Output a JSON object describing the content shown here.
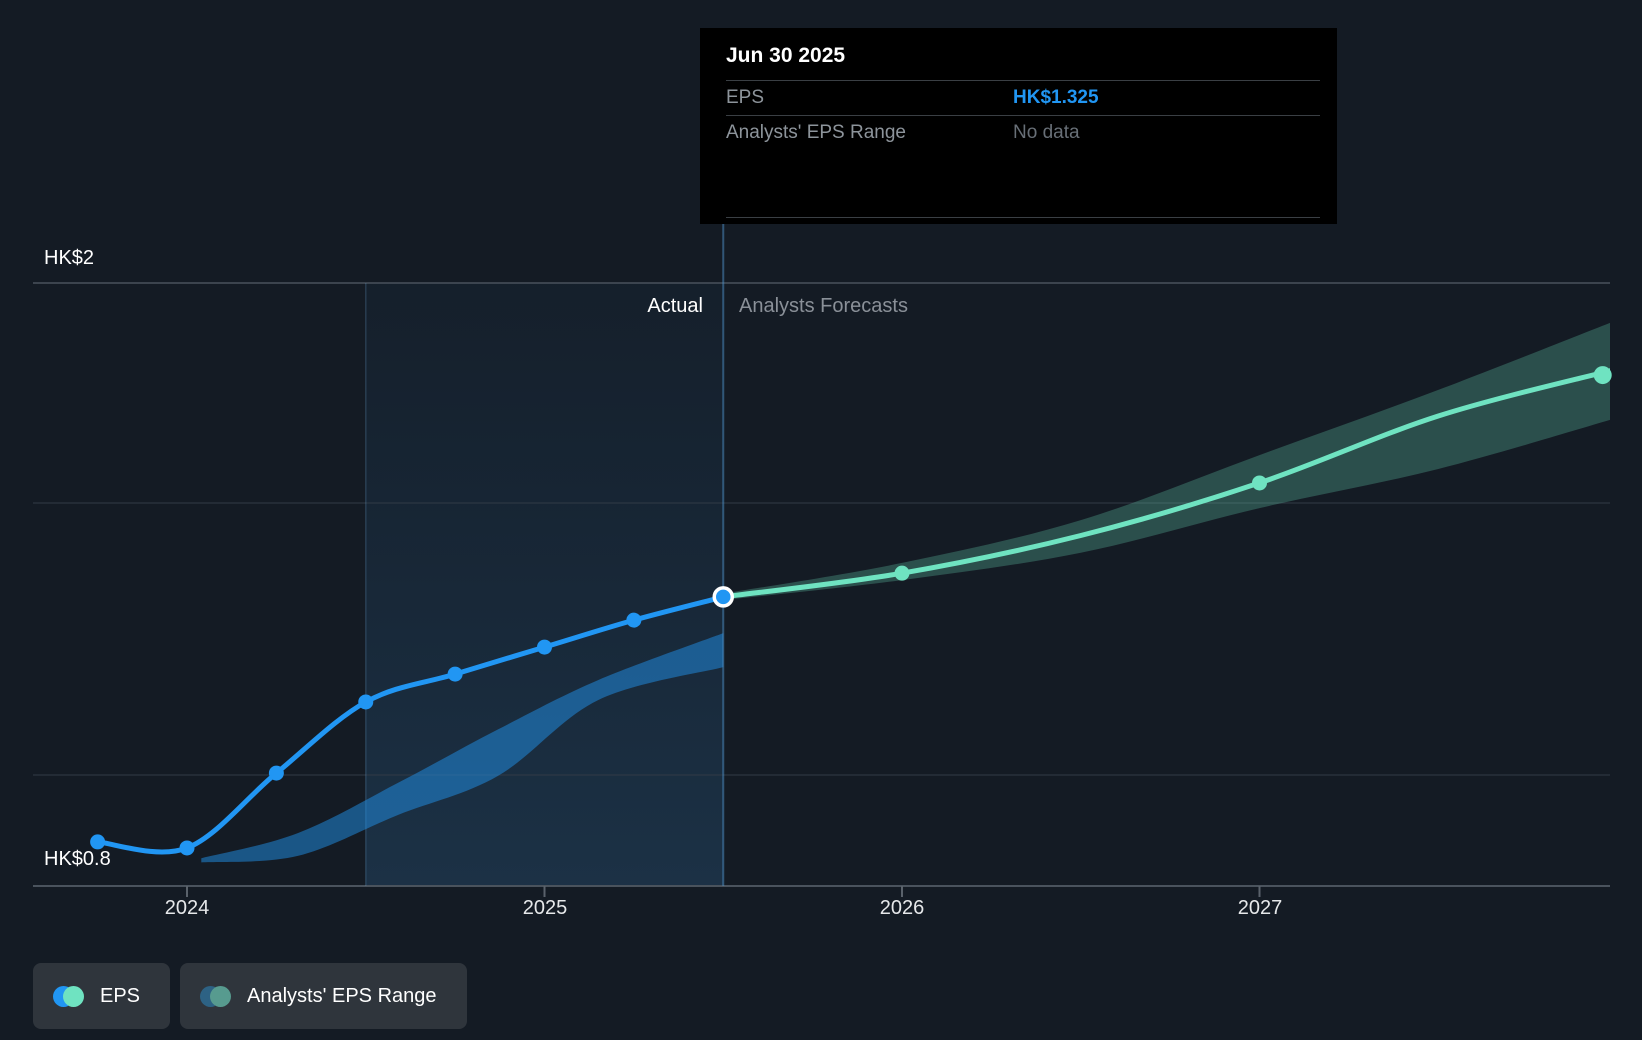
{
  "page": {
    "background": "#141b24",
    "accent_blue": "#2196f3",
    "accent_teal": "#6fe3c1"
  },
  "tooltip": {
    "date": "Jun 30 2025",
    "rows": [
      {
        "label": "EPS",
        "value": "HK$1.325",
        "value_color": "#2196f3"
      },
      {
        "label": "Analysts' EPS Range",
        "value": "No data",
        "value_color": "#686f77"
      }
    ]
  },
  "timeline": {
    "actual_label": "Actual",
    "forecast_label": "Analysts Forecasts"
  },
  "axis": {
    "y_top_label": "HK$2",
    "y_bottom_label": "HK$0.8"
  },
  "legend": [
    {
      "label": "EPS",
      "colors": [
        "#2196f3",
        "#6fe3c1"
      ]
    },
    {
      "label": "Analysts' EPS Range",
      "colors": [
        "#2d6284",
        "#579b8f"
      ]
    }
  ],
  "chart_data": {
    "type": "line",
    "title": "EPS: actual vs analysts forecast",
    "currency": "HK$",
    "x_ticks": [
      2024,
      2025,
      2026,
      2027
    ],
    "y_labels": [
      {
        "value": 2.0,
        "text": "HK$2"
      },
      {
        "value": 0.8,
        "text": "HK$0.8"
      }
    ],
    "gridline_values": [
      2.0,
      1.527,
      0.942
    ],
    "divider_x": 2025.5,
    "divider_date": "Jun 30 2025",
    "highlight_region": [
      2024.5,
      2025.5
    ],
    "series": [
      {
        "name": "EPS",
        "segment": "actual",
        "color": "#2196f3",
        "points": [
          [
            2023.75,
            0.798
          ],
          [
            2024.0,
            0.785
          ],
          [
            2024.25,
            0.946
          ],
          [
            2024.5,
            1.099
          ],
          [
            2024.75,
            1.159
          ],
          [
            2025.0,
            1.217
          ],
          [
            2025.25,
            1.275
          ],
          [
            2025.5,
            1.325
          ]
        ],
        "dot_points": "all"
      },
      {
        "name": "EPS forecast",
        "segment": "forecast",
        "color": "#6fe3c1",
        "points": [
          [
            2025.5,
            1.325
          ],
          [
            2026.0,
            1.376
          ],
          [
            2026.5,
            1.457
          ],
          [
            2027.0,
            1.57
          ],
          [
            2027.5,
            1.714
          ],
          [
            2028.0,
            1.815
          ]
        ],
        "dot_points": [
          [
            2026.0,
            1.376
          ],
          [
            2027.0,
            1.57
          ],
          [
            2027.96,
            1.802
          ]
        ]
      }
    ],
    "bands": [
      {
        "name": "analysts-range-past",
        "color": "rgba(33,150,243,0.48)",
        "points": [
          {
            "t": 2024.04,
            "lo": 0.754,
            "hi": 0.763
          },
          {
            "t": 2024.31,
            "lo": 0.768,
            "hi": 0.817
          },
          {
            "t": 2024.59,
            "lo": 0.856,
            "hi": 0.925
          },
          {
            "t": 2024.87,
            "lo": 0.94,
            "hi": 1.04
          },
          {
            "t": 2025.15,
            "lo": 1.103,
            "hi": 1.146
          },
          {
            "t": 2025.5,
            "lo": 1.174,
            "hi": 1.247
          }
        ]
      },
      {
        "name": "analysts-range-forecast",
        "color": "rgba(111,227,195,0.26)",
        "points": [
          {
            "t": 2025.5,
            "lo": 1.318,
            "hi": 1.332
          },
          {
            "t": 2026.0,
            "lo": 1.361,
            "hi": 1.398
          },
          {
            "t": 2026.5,
            "lo": 1.42,
            "hi": 1.49
          },
          {
            "t": 2027.0,
            "lo": 1.516,
            "hi": 1.63
          },
          {
            "t": 2027.5,
            "lo": 1.6,
            "hi": 1.77
          },
          {
            "t": 2028.0,
            "lo": 1.71,
            "hi": 1.92
          }
        ]
      }
    ]
  }
}
